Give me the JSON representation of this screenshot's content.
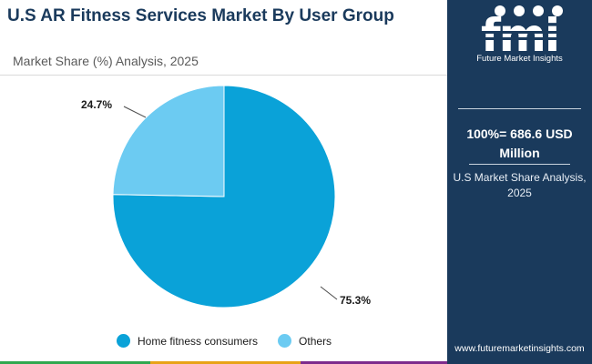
{
  "header": {
    "title": "U.S AR Fitness Services Market By User Group",
    "subtitle": "Market Share (%) Analysis, 2025"
  },
  "brand": {
    "logo_text": "fmi",
    "name": "Future Market Insights",
    "website": "www.futuremarketinsights.com"
  },
  "summary": {
    "total": "100%= 686.6 USD Million",
    "share_label": "U.S Market Share Analysis, 2025"
  },
  "colors": {
    "navy": "#1a3a5c",
    "home_fitness": "#0aa2d8",
    "others": "#6ccbf2"
  },
  "chart_data": {
    "type": "pie",
    "title": "U.S AR Fitness Services Market By User Group",
    "subtitle": "Market Share (%) Analysis, 2025",
    "slices": [
      {
        "label": "Home fitness consumers",
        "value": 75.3,
        "display": "75.3%",
        "color": "#0aa2d8"
      },
      {
        "label": "Others",
        "value": 24.7,
        "display": "24.7%",
        "color": "#6ccbf2"
      }
    ],
    "legend_position": "bottom"
  }
}
